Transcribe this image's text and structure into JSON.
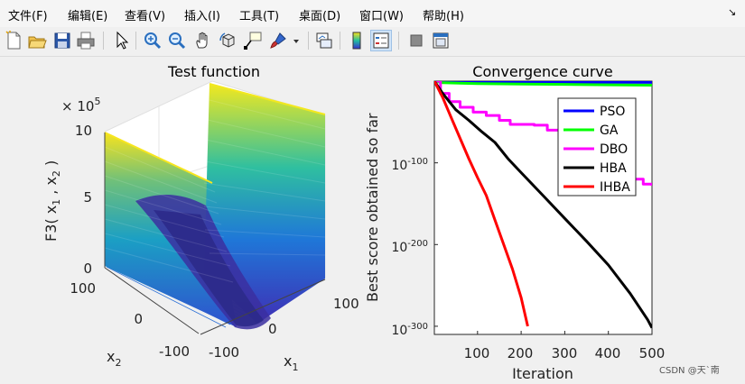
{
  "menu": {
    "items": [
      {
        "label": "文件(F)"
      },
      {
        "label": "编辑(E)"
      },
      {
        "label": "查看(V)"
      },
      {
        "label": "插入(I)"
      },
      {
        "label": "工具(T)"
      },
      {
        "label": "桌面(D)"
      },
      {
        "label": "窗口(W)"
      },
      {
        "label": "帮助(H)"
      }
    ],
    "overflow_icon": "dock-arrow-icon"
  },
  "toolbar": {
    "buttons": [
      {
        "icon": "new-figure-icon"
      },
      {
        "icon": "open-file-icon"
      },
      {
        "icon": "save-icon"
      },
      {
        "icon": "print-icon"
      },
      {
        "icon": "pointer-icon"
      },
      {
        "icon": "zoom-in-icon"
      },
      {
        "icon": "zoom-out-icon"
      },
      {
        "icon": "pan-icon"
      },
      {
        "icon": "rotate-3d-icon"
      },
      {
        "icon": "data-cursor-icon"
      },
      {
        "icon": "brush-icon"
      },
      {
        "icon": "link-plot-icon"
      },
      {
        "icon": "colorbar-icon"
      },
      {
        "icon": "legend-icon"
      },
      {
        "icon": "hide-plot-tools-icon"
      },
      {
        "icon": "show-plot-tools-icon"
      }
    ]
  },
  "chart_data": [
    {
      "type": "surface",
      "title": "Test function",
      "zlabel": "F3( x_1 , x_2 )",
      "xlabel": "x_1",
      "ylabel": "x_2",
      "z_multiplier": "× 10^5",
      "z_ticks": [
        "0",
        "5",
        "10"
      ],
      "x_ticks": [
        "-100",
        "0",
        "100"
      ],
      "y_ticks": [
        "-100",
        "0",
        "100"
      ],
      "xlim": [
        -100,
        100
      ],
      "ylim": [
        -100,
        100
      ],
      "zlim": [
        0,
        1000000
      ],
      "colormap": "parula"
    },
    {
      "type": "line",
      "title": "Convergence curve",
      "xlabel": "Iteration",
      "ylabel": "Best score obtained so far",
      "yscale": "log",
      "xlim": [
        1,
        500
      ],
      "ylim_exp": [
        -310,
        0
      ],
      "x_ticks": [
        "100",
        "200",
        "300",
        "400",
        "500"
      ],
      "y_ticks": [
        {
          "base": "10",
          "exp": "-100"
        },
        {
          "base": "10",
          "exp": "-200"
        },
        {
          "base": "10",
          "exp": "-300"
        }
      ],
      "legend_position": "top-right",
      "series": [
        {
          "name": "PSO",
          "color": "#0000ff",
          "x": [
            1,
            20,
            100,
            200,
            300,
            400,
            500
          ],
          "y_exp": [
            0,
            -1,
            -1,
            -1.5,
            -1.5,
            -1.5,
            -1.5
          ]
        },
        {
          "name": "GA",
          "color": "#00ff00",
          "x": [
            1,
            20,
            100,
            200,
            300,
            400,
            500
          ],
          "y_exp": [
            0,
            -2,
            -3,
            -3.5,
            -4,
            -4.5,
            -5
          ]
        },
        {
          "name": "DBO",
          "color": "#ff00ff",
          "x": [
            1,
            15,
            35,
            60,
            90,
            120,
            150,
            175,
            200,
            230,
            260,
            320,
            330,
            380,
            390,
            420,
            450,
            480,
            500
          ],
          "y_exp": [
            0,
            -15,
            -25,
            -32,
            -38,
            -42,
            -48,
            -53,
            -53,
            -54,
            -60,
            -70,
            -80,
            -90,
            -103,
            -112,
            -120,
            -126,
            -128
          ]
        },
        {
          "name": "HBA",
          "color": "#000000",
          "x": [
            1,
            20,
            50,
            80,
            110,
            140,
            170,
            200,
            250,
            300,
            350,
            400,
            450,
            490,
            500
          ],
          "y_exp": [
            0,
            -15,
            -35,
            -48,
            -62,
            -75,
            -95,
            -112,
            -140,
            -168,
            -196,
            -225,
            -260,
            -292,
            -302
          ]
        },
        {
          "name": "IHBA",
          "color": "#ff0000",
          "x": [
            1,
            20,
            40,
            60,
            80,
            100,
            120,
            140,
            160,
            180,
            200,
            215
          ],
          "y_exp": [
            0,
            -20,
            -45,
            -70,
            -95,
            -118,
            -140,
            -170,
            -200,
            -230,
            -265,
            -300
          ]
        }
      ]
    }
  ],
  "watermark": {
    "text": "CSDN @天`南"
  }
}
